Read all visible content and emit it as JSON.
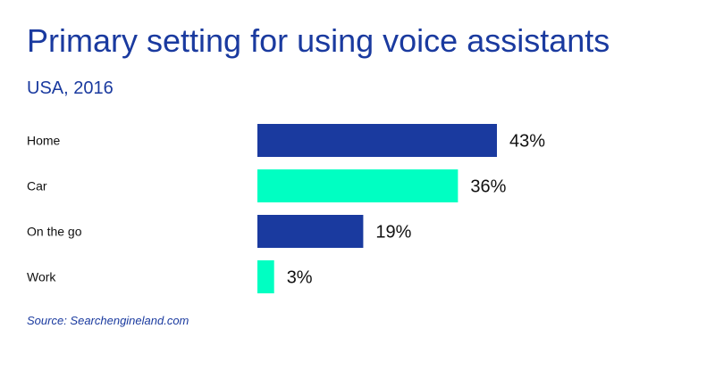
{
  "chart_data": {
    "type": "bar",
    "orientation": "horizontal",
    "title": "Primary setting for using voice assistants",
    "subtitle": "USA, 2016",
    "source": "Source: Searchengineland.com",
    "categories": [
      "Home",
      "Car",
      "On the go",
      "Work"
    ],
    "values": [
      43,
      36,
      19,
      3
    ],
    "value_labels": [
      "43%",
      "36%",
      "19%",
      "3%"
    ],
    "unit": "%",
    "xlim": [
      0,
      43
    ],
    "grid": false,
    "colors": [
      "#1a3a9f",
      "#00ffc2",
      "#1a3a9f",
      "#00ffc2"
    ]
  }
}
